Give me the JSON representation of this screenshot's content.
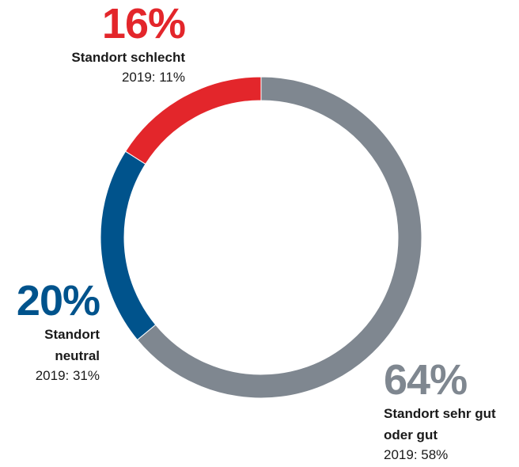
{
  "chart_data": {
    "type": "donut",
    "categories": [
      "Standort sehr gut oder gut",
      "Standort neutral",
      "Standort schlecht"
    ],
    "values": [
      64,
      20,
      16
    ],
    "value_labels": [
      "64%",
      "20%",
      "16%"
    ],
    "previous_labels": [
      "2019: 58%",
      "2019: 31%",
      "2019: 11%"
    ],
    "colors": [
      "#7f8790",
      "#00538c",
      "#e3262b"
    ]
  }
}
